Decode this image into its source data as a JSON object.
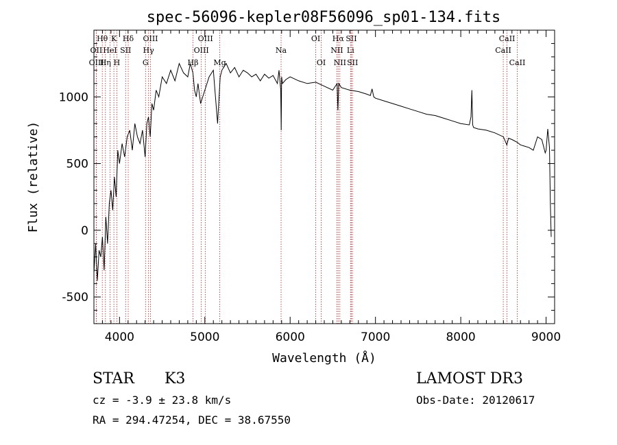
{
  "chart_data": {
    "type": "line",
    "title": "spec-56096-kepler08F56096_sp01-134.fits",
    "xlabel": "Wavelength (Å)",
    "ylabel": "Flux (relative)",
    "xlim": [
      3700,
      9100
    ],
    "ylim": [
      -700,
      1500
    ],
    "xticks": [
      4000,
      5000,
      6000,
      7000,
      8000,
      9000
    ],
    "yticks": [
      -500,
      0,
      500,
      1000
    ],
    "series": [
      {
        "name": "flux",
        "x": [
          3700,
          3720,
          3740,
          3760,
          3780,
          3800,
          3820,
          3840,
          3860,
          3880,
          3900,
          3920,
          3940,
          3960,
          3980,
          4000,
          4030,
          4060,
          4090,
          4120,
          4150,
          4180,
          4210,
          4240,
          4270,
          4300,
          4320,
          4340,
          4360,
          4380,
          4400,
          4430,
          4460,
          4500,
          4550,
          4600,
          4650,
          4700,
          4750,
          4800,
          4830,
          4860,
          4880,
          4900,
          4920,
          4950,
          5000,
          5050,
          5100,
          5150,
          5180,
          5200,
          5250,
          5300,
          5350,
          5400,
          5450,
          5500,
          5550,
          5600,
          5650,
          5700,
          5750,
          5800,
          5850,
          5870,
          5890,
          5895,
          5900,
          5910,
          5950,
          6000,
          6100,
          6200,
          6300,
          6400,
          6500,
          6550,
          6560,
          6570,
          6600,
          6700,
          6800,
          6900,
          6940,
          6960,
          6980,
          7000,
          7100,
          7200,
          7300,
          7400,
          7500,
          7600,
          7700,
          7800,
          7900,
          8000,
          8100,
          8120,
          8130,
          8140,
          8150,
          8200,
          8300,
          8400,
          8500,
          8540,
          8560,
          8600,
          8660,
          8700,
          8800,
          8850,
          8900,
          8950,
          8990,
          9000,
          9020,
          9040,
          9050,
          9060
        ],
        "values": [
          -320,
          -100,
          -380,
          -150,
          -200,
          -50,
          -300,
          100,
          -100,
          200,
          300,
          150,
          400,
          250,
          600,
          500,
          650,
          550,
          700,
          750,
          600,
          800,
          700,
          650,
          750,
          550,
          800,
          850,
          700,
          950,
          900,
          1050,
          1000,
          1150,
          1100,
          1200,
          1120,
          1250,
          1180,
          1150,
          1250,
          1180,
          1050,
          1000,
          1100,
          950,
          1050,
          1150,
          1200,
          800,
          1150,
          1200,
          1250,
          1180,
          1220,
          1150,
          1200,
          1180,
          1150,
          1170,
          1120,
          1170,
          1140,
          1160,
          1100,
          1200,
          1050,
          750,
          1150,
          1100,
          1130,
          1150,
          1120,
          1100,
          1110,
          1080,
          1050,
          1100,
          900,
          1100,
          1070,
          1050,
          1040,
          1020,
          1010,
          1060,
          1000,
          990,
          970,
          950,
          930,
          910,
          890,
          870,
          860,
          840,
          820,
          800,
          790,
          850,
          1050,
          790,
          770,
          760,
          750,
          730,
          700,
          640,
          690,
          680,
          660,
          640,
          620,
          600,
          700,
          680,
          580,
          600,
          760,
          620,
          200,
          -50
        ]
      }
    ],
    "spectral_lines": [
      {
        "label": "Hθ",
        "x": 3798,
        "row": 1
      },
      {
        "label": "OII",
        "x": 3727,
        "row": 2
      },
      {
        "label": "OIII",
        "x": 3729,
        "row": 3
      },
      {
        "label": "K",
        "x": 3934,
        "row": 1
      },
      {
        "label": "HeI",
        "x": 3889,
        "row": 2
      },
      {
        "label": "Hη",
        "x": 3835,
        "row": 3
      },
      {
        "label": "Hδ",
        "x": 4102,
        "row": 1
      },
      {
        "label": "SII",
        "x": 4072,
        "row": 2
      },
      {
        "label": "H",
        "x": 3969,
        "row": 3
      },
      {
        "label": "OIII",
        "x": 4363,
        "row": 1
      },
      {
        "label": "Hγ",
        "x": 4340,
        "row": 2
      },
      {
        "label": "G",
        "x": 4305,
        "row": 3
      },
      {
        "label": "OIII",
        "x": 5007,
        "row": 1
      },
      {
        "label": "OIII",
        "x": 4959,
        "row": 2
      },
      {
        "label": "Hβ",
        "x": 4861,
        "row": 3
      },
      {
        "label": "Mg",
        "x": 5175,
        "row": 3
      },
      {
        "label": "Na",
        "x": 5894,
        "row": 2
      },
      {
        "label": "OI",
        "x": 6300,
        "row": 1
      },
      {
        "label": "OI",
        "x": 6364,
        "row": 3
      },
      {
        "label": "Hα",
        "x": 6563,
        "row": 1
      },
      {
        "label": "SII",
        "x": 6717,
        "row": 1
      },
      {
        "label": "NII",
        "x": 6548,
        "row": 2
      },
      {
        "label": "Li",
        "x": 6708,
        "row": 2
      },
      {
        "label": "NII",
        "x": 6583,
        "row": 3
      },
      {
        "label": "SII",
        "x": 6731,
        "row": 3
      },
      {
        "label": "CaII",
        "x": 8542,
        "row": 1
      },
      {
        "label": "CaII",
        "x": 8498,
        "row": 2
      },
      {
        "label": "CaII",
        "x": 8662,
        "row": 3
      }
    ]
  },
  "info": {
    "class": "STAR",
    "subclass": "K3",
    "survey": "LAMOST DR3",
    "cz": "cz = -3.9 ± 23.8 km/s",
    "obs_date": "Obs-Date: 20120617",
    "coords": "RA = 294.47254, DEC =  38.67550"
  }
}
